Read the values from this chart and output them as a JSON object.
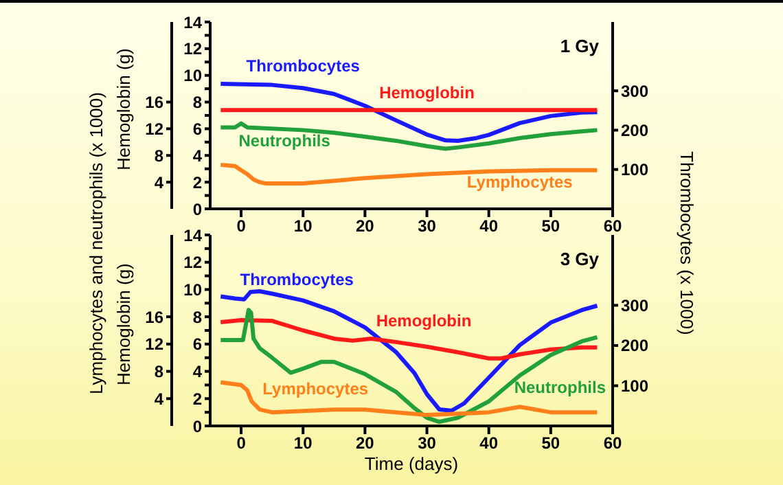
{
  "chart_data": [
    {
      "type": "line",
      "title": "1 Gy",
      "ylabel": "Lymphocytes and neutrophils (x 1000)",
      "y2label": "Thrombocytes (x 1000)",
      "y3label": "Hemoglobin (g)",
      "xlim": [
        -5,
        60
      ],
      "xticks": [
        0,
        10,
        20,
        30,
        40,
        50,
        60
      ],
      "ylim": [
        0,
        14
      ],
      "yticks": [
        0,
        {
          "value": 1,
          "label": null
        },
        2,
        {
          "value": 3,
          "label": null
        },
        4,
        {
          "value": 5,
          "label": null
        },
        6,
        {
          "value": 7,
          "label": null
        },
        8,
        {
          "value": 9,
          "label": null
        },
        10,
        {
          "value": 11,
          "label": null
        },
        12,
        {
          "value": 13,
          "label": null
        },
        14
      ],
      "y2lim": [
        0,
        475
      ],
      "y2ticks": [
        100,
        200,
        300
      ],
      "y3lim": [
        0,
        28
      ],
      "y3ticks": [
        4,
        8,
        12,
        16
      ],
      "line_style": "solid",
      "series": [
        {
          "name": "Thrombocytes",
          "color": "#1a1aff",
          "axis": "y2",
          "x": [
            -3.3,
            5,
            10,
            15,
            20,
            25,
            30,
            33,
            35,
            38,
            40,
            45,
            50,
            55,
            57.5
          ],
          "values": [
            318,
            315,
            307,
            292,
            262,
            225,
            189,
            174,
            173,
            180,
            188,
            218,
            236,
            245,
            246
          ]
        },
        {
          "name": "Hemoglobin",
          "color": "#ff1a1a",
          "axis": "y3",
          "x": [
            -3.3,
            57.5
          ],
          "values": [
            14.8,
            14.8
          ]
        },
        {
          "name": "Neutrophils",
          "color": "#22a03c",
          "x": [
            -3.3,
            -1,
            0,
            1,
            10,
            15,
            20,
            25,
            30,
            33,
            35,
            40,
            45,
            50,
            55,
            57.5
          ],
          "values": [
            6.1,
            6.1,
            6.4,
            6.1,
            5.9,
            5.7,
            5.4,
            5.1,
            4.7,
            4.5,
            4.6,
            4.9,
            5.3,
            5.6,
            5.8,
            5.9
          ]
        },
        {
          "name": "Lymphocytes",
          "color": "#ff7f1a",
          "x": [
            -3.3,
            -1,
            0,
            1,
            2,
            3,
            4,
            10,
            15,
            20,
            30,
            40,
            50,
            57.5
          ],
          "values": [
            3.3,
            3.2,
            2.9,
            2.6,
            2.2,
            2.0,
            1.9,
            1.9,
            2.1,
            2.3,
            2.6,
            2.8,
            2.9,
            2.9
          ]
        }
      ]
    },
    {
      "type": "line",
      "title": "3 Gy",
      "xlabel": "Time (days)",
      "y3label": "Hemoglobin (g)",
      "xlim": [
        -5,
        60
      ],
      "xticks": [
        0,
        10,
        20,
        30,
        40,
        50,
        60
      ],
      "ylim": [
        0,
        14
      ],
      "yticks": [
        0,
        {
          "value": 1,
          "label": null
        },
        2,
        {
          "value": 3,
          "label": null
        },
        4,
        {
          "value": 5,
          "label": null
        },
        6,
        {
          "value": 7,
          "label": null
        },
        8,
        {
          "value": 9,
          "label": null
        },
        10,
        {
          "value": 11,
          "label": null
        },
        12,
        {
          "value": 13,
          "label": null
        },
        14
      ],
      "y2lim": [
        0,
        475
      ],
      "y2ticks": [
        100,
        200,
        300
      ],
      "y3lim": [
        0,
        28
      ],
      "y3ticks": [
        4,
        8,
        12,
        16
      ],
      "line_style": "solid",
      "series": [
        {
          "name": "Thrombocytes",
          "color": "#1a1aff",
          "axis": "y2",
          "x": [
            -3.3,
            -1,
            0.5,
            1.5,
            3,
            5,
            10,
            15,
            20,
            25,
            28,
            30,
            32,
            34,
            36,
            40,
            45,
            50,
            55,
            57.5
          ],
          "values": [
            322,
            317,
            315,
            333,
            335,
            329,
            312,
            285,
            245,
            184,
            131,
            79,
            41,
            38,
            56,
            120,
            201,
            257,
            288,
            299
          ]
        },
        {
          "name": "Hemoglobin",
          "color": "#ff1a1a",
          "axis": "y3",
          "x": [
            -3.3,
            0,
            5,
            10,
            15,
            18,
            21,
            25,
            30,
            35,
            40,
            42,
            45,
            50,
            55,
            57.5
          ],
          "values": [
            15.2,
            15.5,
            15.4,
            14.0,
            12.8,
            12.5,
            12.8,
            12.3,
            11.6,
            10.8,
            9.9,
            9.9,
            10.5,
            11.2,
            11.5,
            11.5
          ]
        },
        {
          "name": "Neutrophils",
          "color": "#22a03c",
          "x": [
            -3.3,
            0.3,
            1.2,
            1.6,
            2,
            3,
            5,
            8,
            10,
            13,
            15,
            20,
            25,
            28,
            30,
            32,
            35,
            40,
            45,
            50,
            55,
            57.5
          ],
          "values": [
            6.3,
            6.3,
            8.5,
            8.3,
            6.4,
            5.7,
            5.0,
            3.9,
            4.2,
            4.7,
            4.7,
            3.8,
            2.5,
            1.3,
            0.6,
            0.3,
            0.6,
            1.8,
            3.7,
            5.2,
            6.2,
            6.5
          ]
        },
        {
          "name": "Lymphocytes",
          "color": "#ff7f1a",
          "x": [
            -3.3,
            0,
            1,
            1.7,
            3,
            5,
            10,
            15,
            20,
            25,
            30,
            35,
            40,
            45,
            50,
            57.5
          ],
          "values": [
            3.2,
            3.0,
            2.6,
            1.8,
            1.2,
            1.0,
            1.1,
            1.2,
            1.2,
            1.0,
            0.8,
            0.9,
            1.0,
            1.4,
            1.0,
            1.0
          ]
        }
      ]
    }
  ]
}
